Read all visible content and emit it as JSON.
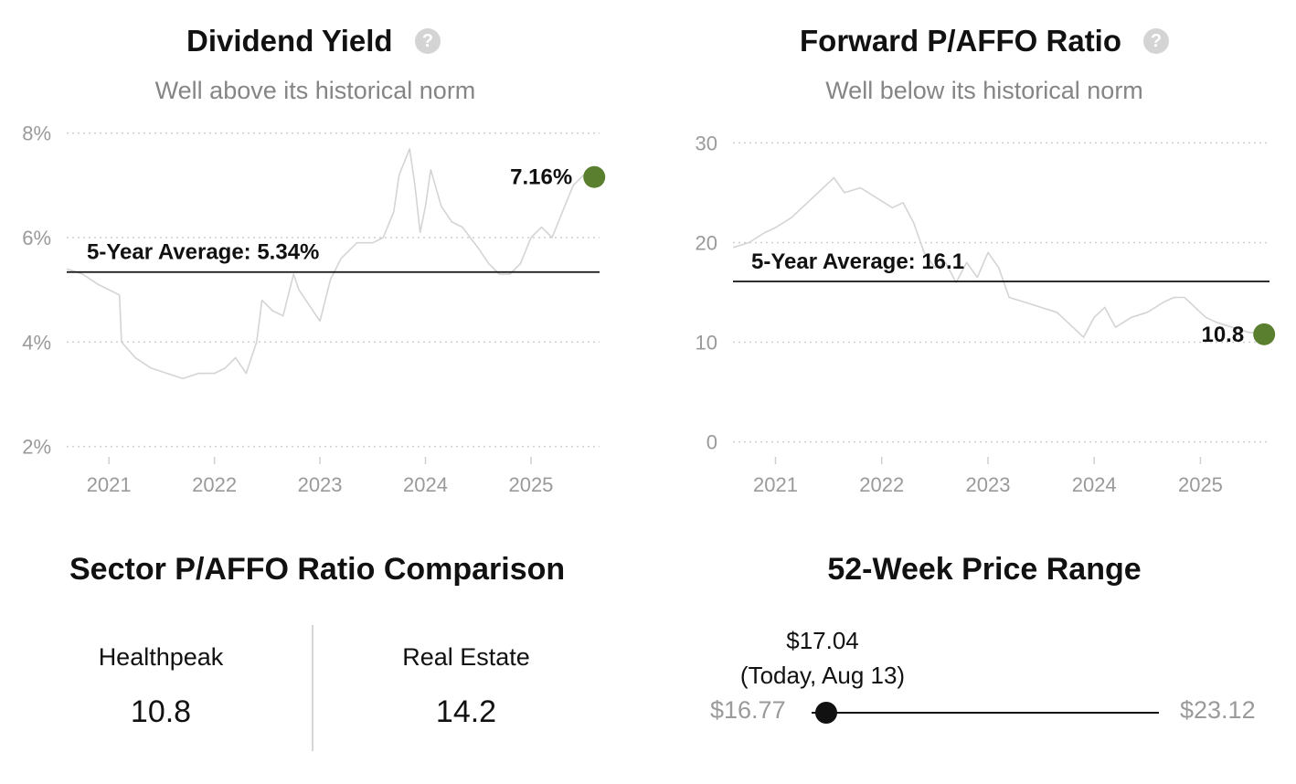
{
  "charts": {
    "dividend_yield": {
      "title": "Dividend Yield",
      "subtitle": "Well above its historical norm",
      "help_glyph": "?",
      "help_icon": "question-circle-icon",
      "average_label": "5-Year Average: 5.34%",
      "current_label": "7.16%",
      "current_color": "#5a7f2e"
    },
    "forward_paffo": {
      "title": "Forward P/AFFO Ratio",
      "subtitle": "Well below its historical norm",
      "help_glyph": "?",
      "help_icon": "question-circle-icon",
      "average_label": "5-Year Average: 16.1",
      "current_label": "10.8",
      "current_color": "#5a7f2e"
    }
  },
  "chart_data": [
    {
      "type": "line",
      "title": "Dividend Yield",
      "subtitle": "Well above its historical norm",
      "xlabel": "",
      "ylabel": "",
      "xlim": [
        2020.6,
        2025.65
      ],
      "ylim": [
        1.8,
        8.1
      ],
      "y_ticks": [
        2,
        4,
        6,
        8
      ],
      "y_tick_labels": [
        "2%",
        "4%",
        "6%",
        "8%"
      ],
      "x_ticks": [
        2021,
        2022,
        2023,
        2024,
        2025
      ],
      "x_tick_labels": [
        "2021",
        "2022",
        "2023",
        "2024",
        "2025"
      ],
      "grid": "horizontal dotted",
      "average": 5.34,
      "current": 7.16,
      "series": [
        {
          "color": "#d4d4d4",
          "x": [
            2020.6,
            2020.75,
            2020.9,
            2021.0,
            2021.1,
            2021.12,
            2021.25,
            2021.4,
            2021.55,
            2021.7,
            2021.85,
            2022.0,
            2022.1,
            2022.2,
            2022.3,
            2022.4,
            2022.45,
            2022.55,
            2022.65,
            2022.75,
            2022.8,
            2022.9,
            2023.0,
            2023.1,
            2023.2,
            2023.35,
            2023.5,
            2023.6,
            2023.7,
            2023.75,
            2023.85,
            2023.9,
            2023.95,
            2024.0,
            2024.05,
            2024.15,
            2024.25,
            2024.35,
            2024.5,
            2024.6,
            2024.7,
            2024.8,
            2024.9,
            2025.0,
            2025.1,
            2025.2,
            2025.3,
            2025.4,
            2025.5,
            2025.6
          ],
          "y": [
            5.4,
            5.3,
            5.1,
            5.0,
            4.9,
            4.0,
            3.7,
            3.5,
            3.4,
            3.3,
            3.4,
            3.4,
            3.5,
            3.7,
            3.4,
            4.0,
            4.8,
            4.6,
            4.5,
            5.3,
            5.0,
            4.7,
            4.4,
            5.2,
            5.6,
            5.9,
            5.9,
            6.0,
            6.5,
            7.2,
            7.7,
            7.0,
            6.1,
            6.6,
            7.3,
            6.6,
            6.3,
            6.2,
            5.8,
            5.5,
            5.3,
            5.3,
            5.5,
            6.0,
            6.2,
            6.0,
            6.5,
            7.0,
            7.2,
            7.16
          ]
        }
      ]
    },
    {
      "type": "line",
      "title": "Forward P/AFFO Ratio",
      "subtitle": "Well below its historical norm",
      "xlabel": "",
      "ylabel": "",
      "xlim": [
        2020.6,
        2025.65
      ],
      "ylim": [
        -1.5,
        31.5
      ],
      "y_ticks": [
        0,
        10,
        20,
        30
      ],
      "y_tick_labels": [
        "0",
        "10",
        "20",
        "30"
      ],
      "x_ticks": [
        2021,
        2022,
        2023,
        2024,
        2025
      ],
      "x_tick_labels": [
        "2021",
        "2022",
        "2023",
        "2024",
        "2025"
      ],
      "grid": "horizontal dotted",
      "average": 16.1,
      "current": 10.8,
      "series": [
        {
          "color": "#d4d4d4",
          "x": [
            2020.6,
            2020.75,
            2020.9,
            2021.0,
            2021.15,
            2021.3,
            2021.45,
            2021.55,
            2021.65,
            2021.8,
            2021.95,
            2022.1,
            2022.2,
            2022.3,
            2022.4,
            2022.5,
            2022.6,
            2022.7,
            2022.8,
            2022.9,
            2023.0,
            2023.1,
            2023.2,
            2023.35,
            2023.5,
            2023.65,
            2023.8,
            2023.9,
            2024.0,
            2024.1,
            2024.2,
            2024.35,
            2024.5,
            2024.65,
            2024.75,
            2024.85,
            2024.95,
            2025.05,
            2025.15,
            2025.3,
            2025.45,
            2025.6
          ],
          "y": [
            19.5,
            20.0,
            21.0,
            21.5,
            22.5,
            24.0,
            25.5,
            26.5,
            25.0,
            25.5,
            24.5,
            23.5,
            24.0,
            22.0,
            19.0,
            17.5,
            18.0,
            16.0,
            18.0,
            16.5,
            19.0,
            17.5,
            14.5,
            14.0,
            13.5,
            13.0,
            11.5,
            10.5,
            12.5,
            13.5,
            11.5,
            12.5,
            13.0,
            14.0,
            14.5,
            14.5,
            13.5,
            12.5,
            12.0,
            11.5,
            11.0,
            10.8
          ]
        }
      ]
    }
  ],
  "sector": {
    "title": "Sector P/AFFO Ratio Comparison",
    "items": [
      {
        "name": "Healthpeak",
        "value": "10.8"
      },
      {
        "name": "Real Estate",
        "value": "14.2"
      }
    ]
  },
  "price_range": {
    "title": "52-Week Price Range",
    "current_price": "$17.04",
    "current_date": "(Today, Aug 13)",
    "low": "$16.77",
    "high": "$23.12",
    "low_value": 16.77,
    "high_value": 23.12,
    "current_value": 17.04
  }
}
